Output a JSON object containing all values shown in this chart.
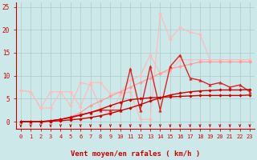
{
  "background_color": "#cce8e8",
  "grid_color": "#aacccc",
  "xlabel": "Vent moyen/en rafales ( km/h )",
  "xlim": [
    -0.5,
    23.5
  ],
  "ylim": [
    -1.5,
    26
  ],
  "yticks": [
    0,
    5,
    10,
    15,
    20,
    25
  ],
  "xticks": [
    0,
    1,
    2,
    3,
    4,
    5,
    6,
    7,
    8,
    9,
    10,
    11,
    12,
    13,
    14,
    15,
    16,
    17,
    18,
    19,
    20,
    21,
    22,
    23
  ],
  "lines": [
    {
      "x": [
        0,
        1,
        2,
        3,
        4,
        5,
        6,
        7,
        8,
        9,
        10,
        11,
        12,
        13,
        14,
        15,
        16,
        17,
        18,
        19,
        20,
        21,
        22,
        23
      ],
      "y": [
        6.8,
        6.5,
        3.0,
        6.5,
        6.5,
        6.5,
        3.2,
        8.5,
        8.5,
        6.0,
        6.5,
        9.0,
        10.0,
        14.5,
        10.5,
        11.0,
        13.5,
        13.5,
        13.5,
        13.5,
        13.5,
        13.5,
        13.5,
        13.5
      ],
      "color": "#ffbbbb",
      "lw": 0.8,
      "marker": "D",
      "ms": 2.0
    },
    {
      "x": [
        0,
        1,
        2,
        3,
        4,
        5,
        6,
        7,
        8,
        9,
        10,
        11,
        12,
        13,
        14,
        15,
        16,
        17,
        18,
        19,
        20,
        21,
        22,
        23
      ],
      "y": [
        6.8,
        6.5,
        3.0,
        3.0,
        6.5,
        3.5,
        8.5,
        8.0,
        3.0,
        1.5,
        6.0,
        6.5,
        0.5,
        0.5,
        23.5,
        18.0,
        20.5,
        19.5,
        19.0,
        13.5,
        13.5,
        13.5,
        13.5,
        13.5
      ],
      "color": "#ffbbbb",
      "lw": 0.8,
      "marker": "D",
      "ms": 2.0
    },
    {
      "x": [
        0,
        1,
        2,
        3,
        4,
        5,
        6,
        7,
        8,
        9,
        10,
        11,
        12,
        13,
        14,
        15,
        16,
        17,
        18,
        19,
        20,
        21,
        22,
        23
      ],
      "y": [
        0,
        0,
        0,
        0,
        0.5,
        1.0,
        2.0,
        3.5,
        4.5,
        5.5,
        6.5,
        7.5,
        8.5,
        9.5,
        10.5,
        11.5,
        12.0,
        12.5,
        13.0,
        13.0,
        13.0,
        13.0,
        13.0,
        13.0
      ],
      "color": "#ff9999",
      "lw": 0.8,
      "marker": "D",
      "ms": 2.0
    },
    {
      "x": [
        0,
        1,
        2,
        3,
        4,
        5,
        6,
        7,
        8,
        9,
        10,
        11,
        12,
        13,
        14,
        15,
        16,
        17,
        18,
        19,
        20,
        21,
        22,
        23
      ],
      "y": [
        0,
        0,
        0,
        0.2,
        0.5,
        1.0,
        1.5,
        2.0,
        2.5,
        2.5,
        2.5,
        11.5,
        2.5,
        12.0,
        2.5,
        12.0,
        14.5,
        9.5,
        9.0,
        8.0,
        8.5,
        7.5,
        8.0,
        6.5
      ],
      "color": "#dd2222",
      "lw": 1.0,
      "marker": "^",
      "ms": 2.5
    },
    {
      "x": [
        0,
        1,
        2,
        3,
        4,
        5,
        6,
        7,
        8,
        9,
        10,
        11,
        12,
        13,
        14,
        15,
        16,
        17,
        18,
        19,
        20,
        21,
        22,
        23
      ],
      "y": [
        0,
        0,
        0,
        0.1,
        0.2,
        0.4,
        0.6,
        0.9,
        1.3,
        1.8,
        2.4,
        3.0,
        3.7,
        4.5,
        5.2,
        5.8,
        6.2,
        6.5,
        6.7,
        6.8,
        6.9,
        6.9,
        6.9,
        7.0
      ],
      "color": "#cc0000",
      "lw": 1.0,
      "marker": "D",
      "ms": 1.8
    },
    {
      "x": [
        0,
        1,
        2,
        3,
        4,
        5,
        6,
        7,
        8,
        9,
        10,
        11,
        12,
        13,
        14,
        15,
        16,
        17,
        18,
        19,
        20,
        21,
        22,
        23
      ],
      "y": [
        0,
        0,
        0,
        0.2,
        0.5,
        0.9,
        1.4,
        2.0,
        2.7,
        3.5,
        4.2,
        4.8,
        5.0,
        5.2,
        5.3,
        5.4,
        5.5,
        5.6,
        5.7,
        5.7,
        5.7,
        5.7,
        5.7,
        5.8
      ],
      "color": "#cc0000",
      "lw": 1.0,
      "marker": "D",
      "ms": 1.8
    }
  ],
  "arrow_color": "#cc0000",
  "xlabel_color": "#cc0000",
  "tick_color": "#cc0000",
  "tick_fontsize": 5.0,
  "xlabel_fontsize": 6.5
}
